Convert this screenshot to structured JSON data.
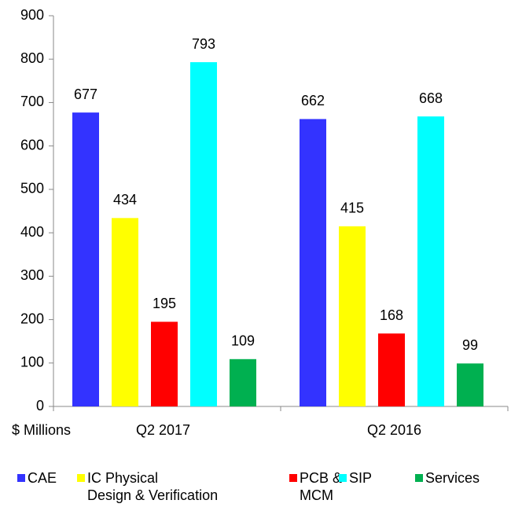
{
  "chart_data": {
    "type": "bar",
    "categories": [
      "Q2 2017",
      "Q2 2016"
    ],
    "y_axis_label": "$ Millions",
    "series": [
      {
        "name": "CAE",
        "color": "#3333ff",
        "values": [
          677,
          662
        ]
      },
      {
        "name": "IC Physical Design & Verification",
        "color": "#ffff00",
        "values": [
          434,
          415
        ]
      },
      {
        "name": "PCB & MCM",
        "color": "#ff0000",
        "values": [
          195,
          168
        ]
      },
      {
        "name": "SIP",
        "color": "#00ffff",
        "values": [
          793,
          668
        ]
      },
      {
        "name": "Services",
        "color": "#00b050",
        "values": [
          109,
          99
        ]
      }
    ],
    "ylim": [
      0,
      900
    ],
    "yticks": [
      0,
      100,
      200,
      300,
      400,
      500,
      600,
      700,
      800,
      900
    ],
    "data_labels": true,
    "legend": "bottom"
  }
}
